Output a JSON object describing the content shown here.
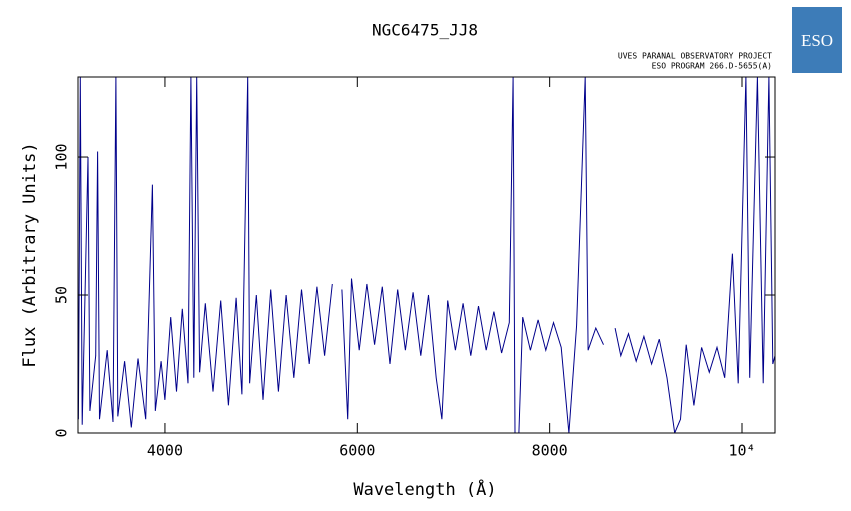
{
  "chart_data": {
    "type": "line",
    "title": "NGC6475_JJ8",
    "subtitle": [
      "UVES PARANAL OBSERVATORY PROJECT",
      "ESO PROGRAM 266.D-5655(A)"
    ],
    "logo": "ESO",
    "x_label": "Wavelength (Å)",
    "y_label": "Flux (Arbitrary Units)",
    "xlim": [
      3096,
      10343
    ],
    "ylim": [
      0,
      129
    ],
    "xticks": [
      4000,
      6000,
      8000,
      {
        "value": 10000,
        "label": "10⁴"
      }
    ],
    "yticks": [
      0,
      50,
      100
    ],
    "x": [
      3100,
      3120,
      3140,
      3200,
      3220,
      3280,
      3300,
      3320,
      3400,
      3460,
      3490,
      3510,
      3580,
      3650,
      3720,
      3800,
      3870,
      3900,
      3960,
      4000,
      4060,
      4120,
      4180,
      4240,
      4270,
      4300,
      4330,
      4360,
      4420,
      4500,
      4580,
      4660,
      4740,
      4800,
      4860,
      4880,
      4950,
      5020,
      5100,
      5180,
      5260,
      5340,
      5420,
      5500,
      5580,
      5660,
      5740,
      5780,
      5840,
      5900,
      5940,
      6020,
      6100,
      6180,
      6260,
      6340,
      6420,
      6500,
      6580,
      6660,
      6740,
      6820,
      6880,
      6940,
      7020,
      7100,
      7180,
      7260,
      7340,
      7420,
      7500,
      7580,
      7620,
      7640,
      7680,
      7720,
      7800,
      7880,
      7960,
      8040,
      8120,
      8200,
      8280,
      8370,
      8400,
      8480,
      8560,
      8600,
      8680,
      8740,
      8820,
      8900,
      8980,
      9060,
      9140,
      9220,
      9300,
      9360,
      9420,
      9500,
      9580,
      9660,
      9740,
      9820,
      9900,
      9960,
      10040,
      10080,
      10160,
      10220,
      10280,
      10320,
      10343
    ],
    "series": [
      {
        "name": "flux",
        "color": "#00008b",
        "values": [
          5,
          129,
          3,
          100,
          8,
          28,
          102,
          5,
          30,
          4,
          129,
          6,
          26,
          2,
          27,
          5,
          90,
          8,
          26,
          12,
          42,
          15,
          45,
          18,
          129,
          20,
          129,
          22,
          47,
          15,
          48,
          10,
          49,
          14,
          129,
          18,
          50,
          12,
          52,
          15,
          50,
          20,
          52,
          25,
          53,
          28,
          54,
          null,
          52,
          5,
          56,
          30,
          54,
          32,
          53,
          25,
          52,
          30,
          51,
          28,
          50,
          20,
          5,
          48,
          30,
          47,
          28,
          46,
          30,
          44,
          29,
          40,
          129,
          0,
          0,
          42,
          30,
          41,
          30,
          40,
          31,
          0,
          39,
          129,
          30,
          38,
          32,
          null,
          38,
          28,
          36,
          26,
          35,
          25,
          34,
          20,
          0,
          5,
          32,
          10,
          31,
          22,
          31,
          20,
          65,
          18,
          129,
          20,
          129,
          18,
          129,
          25,
          28
        ]
      }
    ]
  }
}
